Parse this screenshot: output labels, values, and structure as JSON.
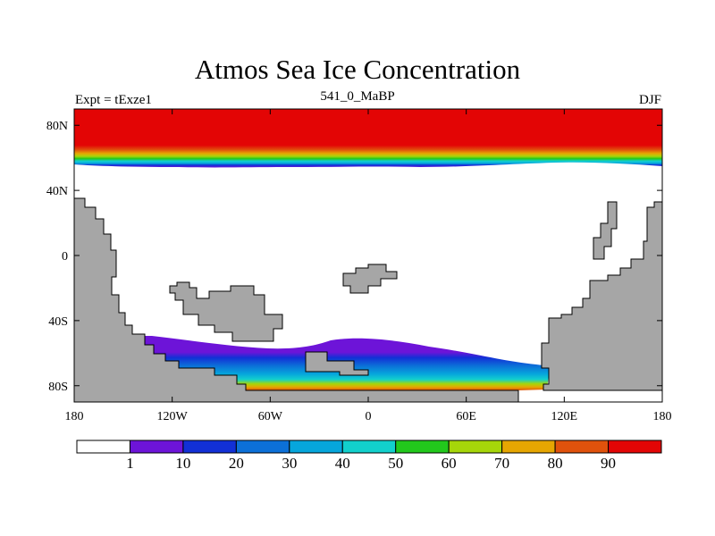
{
  "title": "Atmos Sea Ice Concentration",
  "subtitle_left": "Expt = tExze1",
  "subtitle_center": "541_0_MaBP",
  "subtitle_right": "DJF",
  "axes": {
    "lon_ticks": [
      "180",
      "120W",
      "60W",
      "0",
      "60E",
      "120E",
      "180"
    ],
    "lat_ticks": [
      "80N",
      "40N",
      "0",
      "40S",
      "80S"
    ]
  },
  "colors": {
    "land": "#a6a6a6",
    "levels": [
      "#ffffff",
      "#6d14d8",
      "#1230d6",
      "#0c70d8",
      "#06a6dc",
      "#12d0cc",
      "#22c81c",
      "#a6d60a",
      "#e6a602",
      "#e0520c",
      "#e30505"
    ]
  },
  "colorbar": {
    "labels": [
      "1",
      "10",
      "20",
      "30",
      "40",
      "50",
      "60",
      "70",
      "80",
      "90"
    ]
  }
}
